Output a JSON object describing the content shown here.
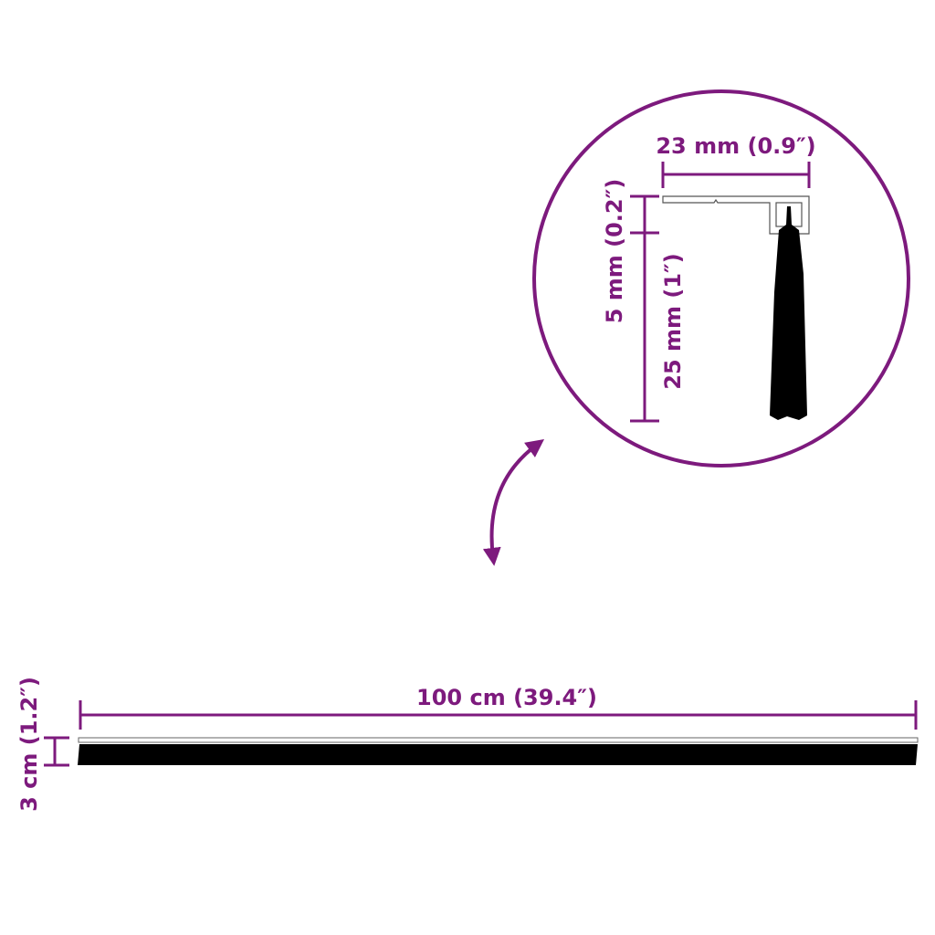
{
  "colors": {
    "accent": "#7d1a7d",
    "brush": "#000000",
    "profile": "#ffffff"
  },
  "detail": {
    "width_label": "23 mm (0.9″)",
    "profile_height_label": "5 mm (0.2″)",
    "brush_height_label": "25 mm (1″)"
  },
  "main": {
    "length_label": "100 cm (39.4″)",
    "height_label": "3 cm (1.2″)"
  },
  "icons": {
    "arrow": "curved-double-arrow-icon"
  }
}
